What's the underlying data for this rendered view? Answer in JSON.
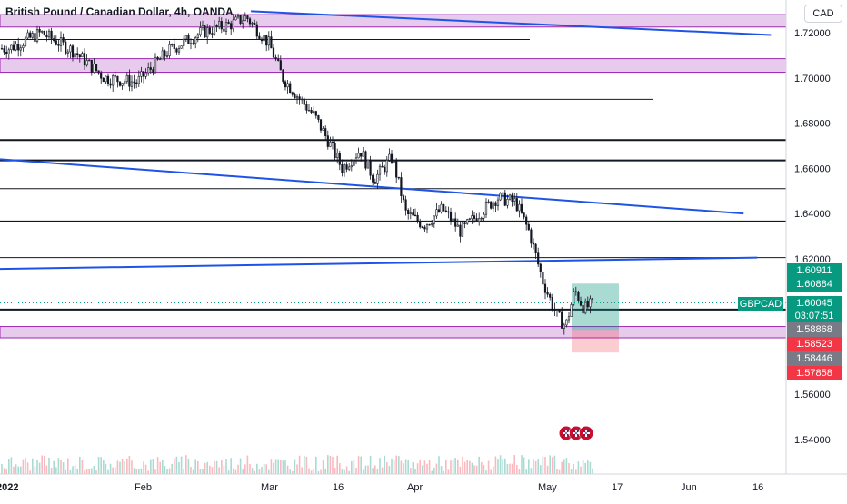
{
  "header": {
    "title": "British Pound / Canadian Dollar, 4h, OANDA",
    "currency": "CAD"
  },
  "symbol_label": "GBPCAD",
  "price_tags": [
    {
      "value": "1.60911",
      "color": "#089981"
    },
    {
      "value": "1.60884",
      "color": "#089981"
    },
    {
      "value": "1.60045",
      "sub": "03:07:51",
      "color": "#089981"
    },
    {
      "value": "1.58868",
      "color": "#787b86"
    },
    {
      "value": "1.58523",
      "color": "#f23645"
    },
    {
      "value": "1.58446",
      "color": "#787b86"
    },
    {
      "value": "1.57858",
      "color": "#f23645"
    }
  ],
  "colors": {
    "up": "#089981",
    "down": "#f23645",
    "candle": "#131722",
    "trendline": "#1e53e5",
    "zone_fill": "#e1bee7",
    "zone_border": "#9c27b0",
    "grid": "#f0f3fa"
  },
  "chart_data": {
    "type": "candlestick",
    "title": "British Pound / Canadian Dollar, 4h, OANDA",
    "y_axis": {
      "range": [
        1.53,
        1.725
      ],
      "ticks": [
        "1.72000",
        "1.70000",
        "1.68000",
        "1.66000",
        "1.64000",
        "1.62000",
        "1.60000",
        "1.58000",
        "1.56000",
        "1.54000"
      ]
    },
    "x_axis": {
      "labels": [
        "2022",
        "Feb",
        "Mar",
        "16",
        "Apr",
        "May",
        "17",
        "Jun",
        "16"
      ]
    },
    "price_path": [
      {
        "date": "2022-01-03",
        "close": 1.713
      },
      {
        "date": "2022-01-10",
        "close": 1.72
      },
      {
        "date": "2022-01-17",
        "close": 1.712
      },
      {
        "date": "2022-01-24",
        "close": 1.7
      },
      {
        "date": "2022-01-31",
        "close": 1.698
      },
      {
        "date": "2022-02-07",
        "close": 1.712
      },
      {
        "date": "2022-02-14",
        "close": 1.72
      },
      {
        "date": "2022-02-21",
        "close": 1.724
      },
      {
        "date": "2022-02-24",
        "close": 1.727
      },
      {
        "date": "2022-03-01",
        "close": 1.715
      },
      {
        "date": "2022-03-04",
        "close": 1.7
      },
      {
        "date": "2022-03-08",
        "close": 1.69
      },
      {
        "date": "2022-03-11",
        "close": 1.683
      },
      {
        "date": "2022-03-14",
        "close": 1.672
      },
      {
        "date": "2022-03-17",
        "close": 1.66
      },
      {
        "date": "2022-03-21",
        "close": 1.668
      },
      {
        "date": "2022-03-24",
        "close": 1.655
      },
      {
        "date": "2022-03-28",
        "close": 1.665
      },
      {
        "date": "2022-03-31",
        "close": 1.64
      },
      {
        "date": "2022-04-04",
        "close": 1.635
      },
      {
        "date": "2022-04-08",
        "close": 1.642
      },
      {
        "date": "2022-04-12",
        "close": 1.632
      },
      {
        "date": "2022-04-16",
        "close": 1.64
      },
      {
        "date": "2022-04-20",
        "close": 1.647
      },
      {
        "date": "2022-04-24",
        "close": 1.645
      },
      {
        "date": "2022-04-27",
        "close": 1.632
      },
      {
        "date": "2022-04-30",
        "close": 1.61
      },
      {
        "date": "2022-05-03",
        "close": 1.595
      },
      {
        "date": "2022-05-05",
        "close": 1.59
      },
      {
        "date": "2022-05-07",
        "close": 1.606
      },
      {
        "date": "2022-05-09",
        "close": 1.598
      },
      {
        "date": "2022-05-11",
        "close": 1.6
      }
    ],
    "horizontal_levels": [
      1.717,
      1.6905,
      1.6725,
      1.6635,
      1.651,
      1.6365,
      1.6205,
      1.5975
    ],
    "zones": [
      {
        "low": 1.7225,
        "high": 1.728
      },
      {
        "low": 1.7025,
        "high": 1.7085
      },
      {
        "low": 1.585,
        "high": 1.59
      }
    ],
    "trendlines": [
      {
        "from": [
          "2022-01-01",
          1.664
        ],
        "to": [
          "2022-06-13",
          1.64
        ]
      },
      {
        "from": [
          "2022-01-01",
          1.6155
        ],
        "to": [
          "2022-06-16",
          1.6205
        ]
      },
      {
        "from": [
          "2022-02-25",
          1.7295
        ],
        "to": [
          "2022-06-19",
          1.719
        ]
      }
    ],
    "position": {
      "type": "long",
      "entry": 1.5885,
      "target": 1.609,
      "stop": 1.5785
    }
  }
}
